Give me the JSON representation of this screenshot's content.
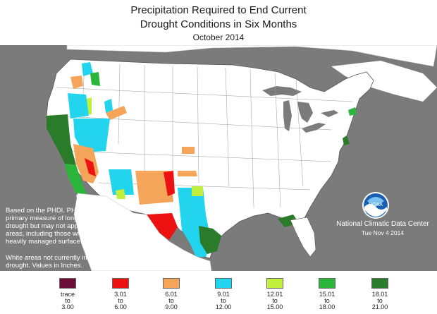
{
  "title": {
    "line1": "Precipitation Required to End Current",
    "line2": "Drought Conditions in Six Months",
    "line3": "October 2014"
  },
  "notes": {
    "phdi": "Based on the PHDI. PHDI is a primary measure of long-term drought but may not apply to all areas, including those with heavily managed surface water.",
    "white_areas": "White areas not currently in drought. Values in Inches."
  },
  "agency": {
    "name": "National Climatic Data Center",
    "date": "Tue Nov  4 2014",
    "logo_text": "NOAA",
    "logo_icon": "noaa-logo-icon"
  },
  "colors": {
    "background": "#7b7b7b",
    "land": "#ffffff",
    "water": "#7b7b7b"
  },
  "legend": [
    {
      "from": "trace",
      "to": "3.00",
      "color": "#6a0f35"
    },
    {
      "from": "3.01",
      "to": "6.00",
      "color": "#ee1111"
    },
    {
      "from": "6.01",
      "to": "9.00",
      "color": "#f4a55a"
    },
    {
      "from": "9.01",
      "to": "12.00",
      "color": "#22d4ee"
    },
    {
      "from": "12.01",
      "to": "15.00",
      "color": "#c0f03c"
    },
    {
      "from": "15.01",
      "to": "18.00",
      "color": "#2bb53a"
    },
    {
      "from": "18.01",
      "to": "21.00",
      "color": "#2a7b2a"
    }
  ],
  "legend_word": "to"
}
